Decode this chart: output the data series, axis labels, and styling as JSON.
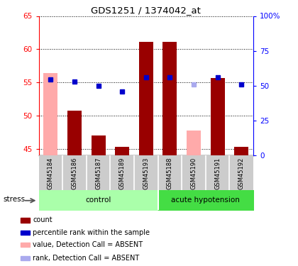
{
  "title": "GDS1251 / 1374042_at",
  "samples": [
    "GSM45184",
    "GSM45186",
    "GSM45187",
    "GSM45189",
    "GSM45193",
    "GSM45188",
    "GSM45190",
    "GSM45191",
    "GSM45192"
  ],
  "bar_values": [
    null,
    50.8,
    47.0,
    45.3,
    61.1,
    61.1,
    null,
    55.7,
    45.3
  ],
  "bar_absent": [
    56.4,
    null,
    null,
    null,
    null,
    null,
    47.8,
    null,
    null
  ],
  "rank_values": [
    55.5,
    55.1,
    54.5,
    53.6,
    55.8,
    55.8,
    null,
    55.8,
    54.7
  ],
  "rank_absent": [
    null,
    null,
    null,
    null,
    null,
    null,
    54.7,
    null,
    null
  ],
  "ylim_left": [
    44,
    65
  ],
  "ylim_right": [
    0,
    100
  ],
  "yticks_left": [
    45,
    50,
    55,
    60,
    65
  ],
  "yticks_right": [
    0,
    25,
    50,
    75,
    100
  ],
  "ytick_labels_right": [
    "0",
    "25",
    "50",
    "75",
    "100%"
  ],
  "bar_color": "#990000",
  "bar_absent_color": "#ffaaaa",
  "rank_color": "#0000cc",
  "rank_absent_color": "#aaaaee",
  "group_control_color": "#aaffaa",
  "group_acute_color": "#44dd44",
  "label_area_color": "#cccccc",
  "stress_label": "stress",
  "control_label": "control",
  "acute_label": "acute hypotension",
  "legend_items": [
    {
      "label": "count",
      "color": "#990000"
    },
    {
      "label": "percentile rank within the sample",
      "color": "#0000cc"
    },
    {
      "label": "value, Detection Call = ABSENT",
      "color": "#ffaaaa"
    },
    {
      "label": "rank, Detection Call = ABSENT",
      "color": "#aaaaee"
    }
  ]
}
